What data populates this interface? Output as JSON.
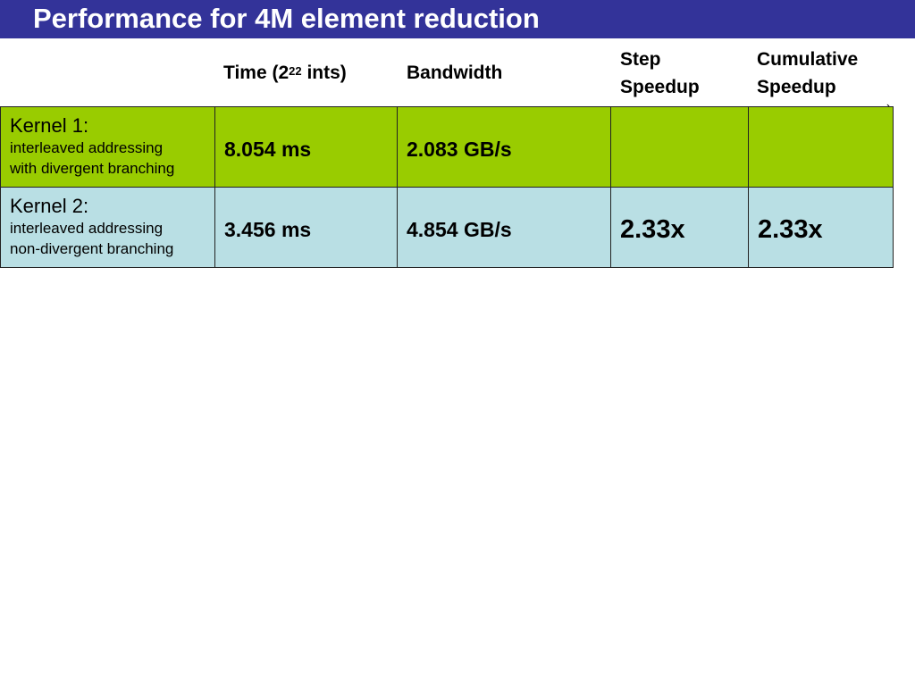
{
  "slide": {
    "title": "Performance for 4M element reduction"
  },
  "table": {
    "headers": {
      "time_prefix": "Time (2",
      "time_exponent": "22",
      "time_suffix": " ints)",
      "bandwidth": "Bandwidth",
      "step_speedup_line1": "Step",
      "step_speedup_line2": "Speedup",
      "cumulative_speedup_line1": "Cumulative",
      "cumulative_speedup_line2": "Speedup"
    },
    "rows": [
      {
        "kernel": "Kernel 1:",
        "desc_line1": "interleaved addressing",
        "desc_line2": "with divergent branching",
        "time": "8.054 ms",
        "bandwidth": "2.083 GB/s",
        "step_speedup": "",
        "cumulative_speedup": "",
        "color": "#99cc00"
      },
      {
        "kernel": "Kernel 2:",
        "desc_line1": "interleaved addressing",
        "desc_line2": "non-divergent branching",
        "time": "3.456 ms",
        "bandwidth": "4.854 GB/s",
        "step_speedup": "2.33x",
        "cumulative_speedup": "2.33x",
        "color": "#b9dfe4"
      }
    ]
  },
  "colors": {
    "title_bar": "#333399",
    "title_text": "#ffffff",
    "row_kernel1": "#99cc00",
    "row_kernel2": "#b9dfe4"
  }
}
